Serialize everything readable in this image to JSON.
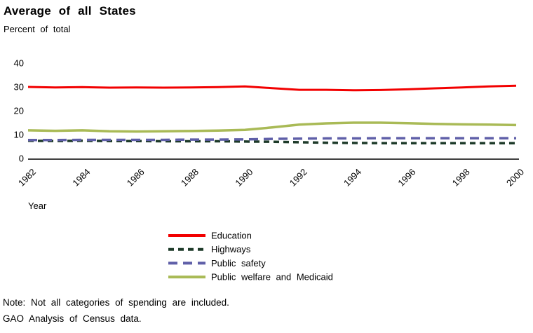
{
  "header": {
    "title": "Average of all States",
    "subtitle": "Percent of total"
  },
  "chart_data": {
    "type": "line",
    "title": "Average of all States",
    "subtitle": "Percent of total",
    "xlabel": "Year",
    "ylabel": "Percent of total",
    "grid": false,
    "legend_position": "bottom-center",
    "ylim": [
      0,
      40
    ],
    "y_ticks": [
      0,
      10,
      20,
      30,
      40
    ],
    "x": [
      1982,
      1983,
      1984,
      1985,
      1986,
      1987,
      1988,
      1989,
      1990,
      1991,
      1992,
      1993,
      1994,
      1995,
      1996,
      1997,
      1998,
      1999,
      2000
    ],
    "x_tick_labels": [
      "1982",
      "1984",
      "1986",
      "1988",
      "1990",
      "1992",
      "1994",
      "1996",
      "1998",
      "2000"
    ],
    "series": [
      {
        "name": "Education",
        "color": "#f20000",
        "style": "solid",
        "values": [
          30.0,
          29.8,
          29.9,
          29.7,
          29.8,
          29.7,
          29.8,
          29.9,
          30.2,
          29.5,
          28.8,
          28.8,
          28.6,
          28.7,
          29.0,
          29.4,
          29.8,
          30.2,
          30.5
        ]
      },
      {
        "name": "Highways",
        "color": "#1d3a29",
        "style": "dashed-short",
        "values": [
          7.4,
          7.3,
          7.4,
          7.3,
          7.3,
          7.2,
          7.2,
          7.2,
          7.1,
          7.0,
          6.8,
          6.6,
          6.5,
          6.4,
          6.4,
          6.4,
          6.4,
          6.4,
          6.4
        ]
      },
      {
        "name": "Public safety",
        "color": "#5f5fa8",
        "style": "dashed-long",
        "values": [
          7.7,
          7.7,
          7.8,
          7.8,
          7.8,
          7.8,
          7.9,
          7.9,
          8.0,
          8.2,
          8.3,
          8.4,
          8.4,
          8.5,
          8.5,
          8.5,
          8.5,
          8.5,
          8.5
        ]
      },
      {
        "name": "Public welfare and Medicaid",
        "color": "#a9ba56",
        "style": "solid",
        "values": [
          11.8,
          11.6,
          11.8,
          11.4,
          11.3,
          11.4,
          11.5,
          11.7,
          12.0,
          13.0,
          14.2,
          14.7,
          15.0,
          15.0,
          14.8,
          14.5,
          14.3,
          14.2,
          14.0
        ]
      }
    ]
  },
  "footer": {
    "note": "Note: Not all categories of spending are included.",
    "source": "GAO Analysis of Census data."
  }
}
